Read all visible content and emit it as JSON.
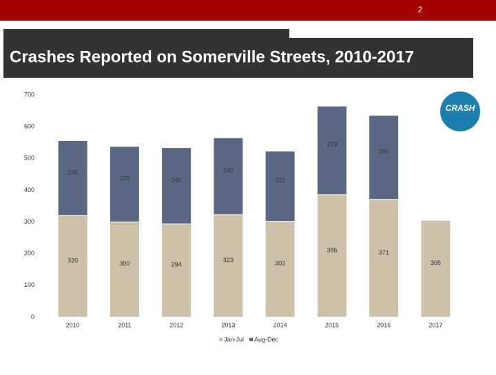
{
  "page_number": "2",
  "logo": "CRASH",
  "chart_data": {
    "type": "stacked-bar",
    "title": "Crashes Reported on Somerville Streets, 2010-2017",
    "categories": [
      "2010",
      "2011",
      "2012",
      "2013",
      "2014",
      "2015",
      "2016",
      "2017"
    ],
    "series": [
      {
        "name": "Jan-Jul",
        "color": "#cdc1aa",
        "values": [
          320,
          300,
          294,
          323,
          302,
          386,
          371,
          305
        ]
      },
      {
        "name": "Aug-Dec",
        "color": "#5b6884",
        "values": [
          236,
          238,
          240,
          242,
          221,
          279,
          265,
          null
        ]
      }
    ],
    "ylim": [
      0,
      700
    ],
    "yticks": [
      0,
      100,
      200,
      300,
      400,
      500,
      600,
      700
    ],
    "grid": false,
    "legend": "bottom"
  }
}
